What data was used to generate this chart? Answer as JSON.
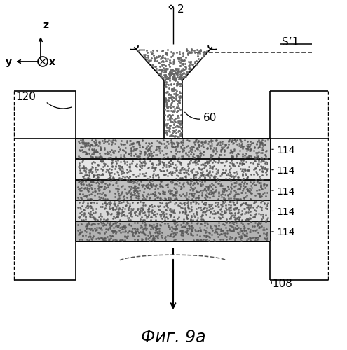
{
  "fig_label": "Фиг. 9a",
  "bg_color": "#ffffff",
  "label_2": "2",
  "label_60": "60",
  "label_S1": "S’1",
  "label_120": "120",
  "label_108": "108",
  "label_114": "114",
  "axis_z": "z",
  "axis_y": "y",
  "axis_x": "x",
  "lc": "#000000",
  "layer_shades": [
    0.8,
    0.9,
    0.75,
    0.85,
    0.7
  ],
  "dot_color": "#555555",
  "dash_color": "#555555"
}
